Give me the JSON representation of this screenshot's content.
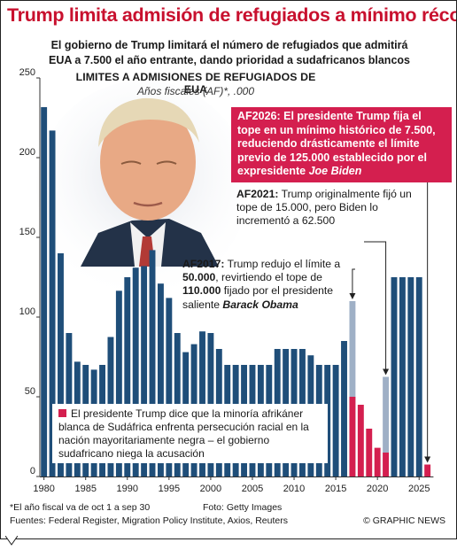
{
  "header": {
    "headline": "Trump limita admisión de refugiados a mínimo récord",
    "subtitle_line1": "El gobierno de Trump limitará el número de refugiados que admitirá",
    "subtitle_line2": "EUA a 7.500 el año entrante, dando prioridad a sudafricanos blancos"
  },
  "annotations": {
    "af2026": {
      "lead": "AF2026:",
      "text": " El presidente Trump fija el tope en un mínimo histórico de 7.500, reduciendo drásticamente el límite previo de 125.000 establecido por el expresidente ",
      "name": "Joe Biden"
    },
    "af2021": {
      "lead": "AF2021:",
      "text": " Trump originalmente fijó un tope de 15.000, pero Biden lo incrementó a 62.500"
    },
    "af2017": {
      "lead": "AF2017:",
      "text1": " Trump redujo el límite a ",
      "num1": "50.000",
      "text2": ", revirtiendo el tope de ",
      "num2": "110.000",
      "text3": " fijado por el presidente saliente ",
      "name": "Barack Obama"
    }
  },
  "legend": {
    "text": "El presidente Trump dice que la minoría afrikáner blanca de Sudáfrica enfrenta persecución racial en la nación mayoritariamente negra – el gobierno sudafricano niega la acusación"
  },
  "footer": {
    "footnote": "*El año fiscal va de oct 1 a sep 30",
    "photo_credit": "Foto: Getty Images",
    "sources": "Fuentes: Federal Register, Migration Policy Institute, Axios, Reuters",
    "publisher": "© GRAPHIC NEWS"
  },
  "colors": {
    "headline_red": "#c8102e",
    "bar_blue": "#1f4e79",
    "trump_red": "#d41f4f",
    "prior_cap_gray": "#9fb0c6"
  },
  "chart_data": {
    "type": "bar",
    "title": "LIMITES A ADMISIONES DE REFUGIADOS DE EUA",
    "subtitle": "Años fiscales (AF)*, .000",
    "ylim": [
      0,
      250
    ],
    "yticks": [
      "0",
      "50",
      "100",
      "150",
      "200",
      "250"
    ],
    "xticks": [
      "1980",
      "1985",
      "1990",
      "1995",
      "2000",
      "2005",
      "2010",
      "2015",
      "2020",
      "2025"
    ],
    "grid": false,
    "x": [
      1980,
      1981,
      1982,
      1983,
      1984,
      1985,
      1986,
      1987,
      1988,
      1989,
      1990,
      1991,
      1992,
      1993,
      1994,
      1995,
      1996,
      1997,
      1998,
      1999,
      2000,
      2001,
      2002,
      2003,
      2004,
      2005,
      2006,
      2007,
      2008,
      2009,
      2010,
      2011,
      2012,
      2013,
      2014,
      2015,
      2016,
      2017,
      2018,
      2019,
      2020,
      2021,
      2022,
      2023,
      2024,
      2025,
      2026
    ],
    "values": [
      231.7,
      217,
      140,
      90,
      72,
      70,
      67,
      70,
      87.5,
      116.5,
      125,
      131,
      132,
      142,
      121,
      112,
      90,
      78,
      83,
      91,
      90,
      80,
      70,
      70,
      70,
      70,
      70,
      70,
      80,
      80,
      80,
      80,
      76,
      70,
      70,
      70,
      85,
      50,
      45,
      30,
      18,
      15,
      125,
      125,
      125,
      125,
      7.5
    ],
    "trump_years": [
      2017,
      2018,
      2019,
      2020,
      2021,
      2026
    ],
    "prior_caps": [
      {
        "year": 2017,
        "value": 110
      },
      {
        "year": 2021,
        "value": 62.5
      }
    ]
  }
}
